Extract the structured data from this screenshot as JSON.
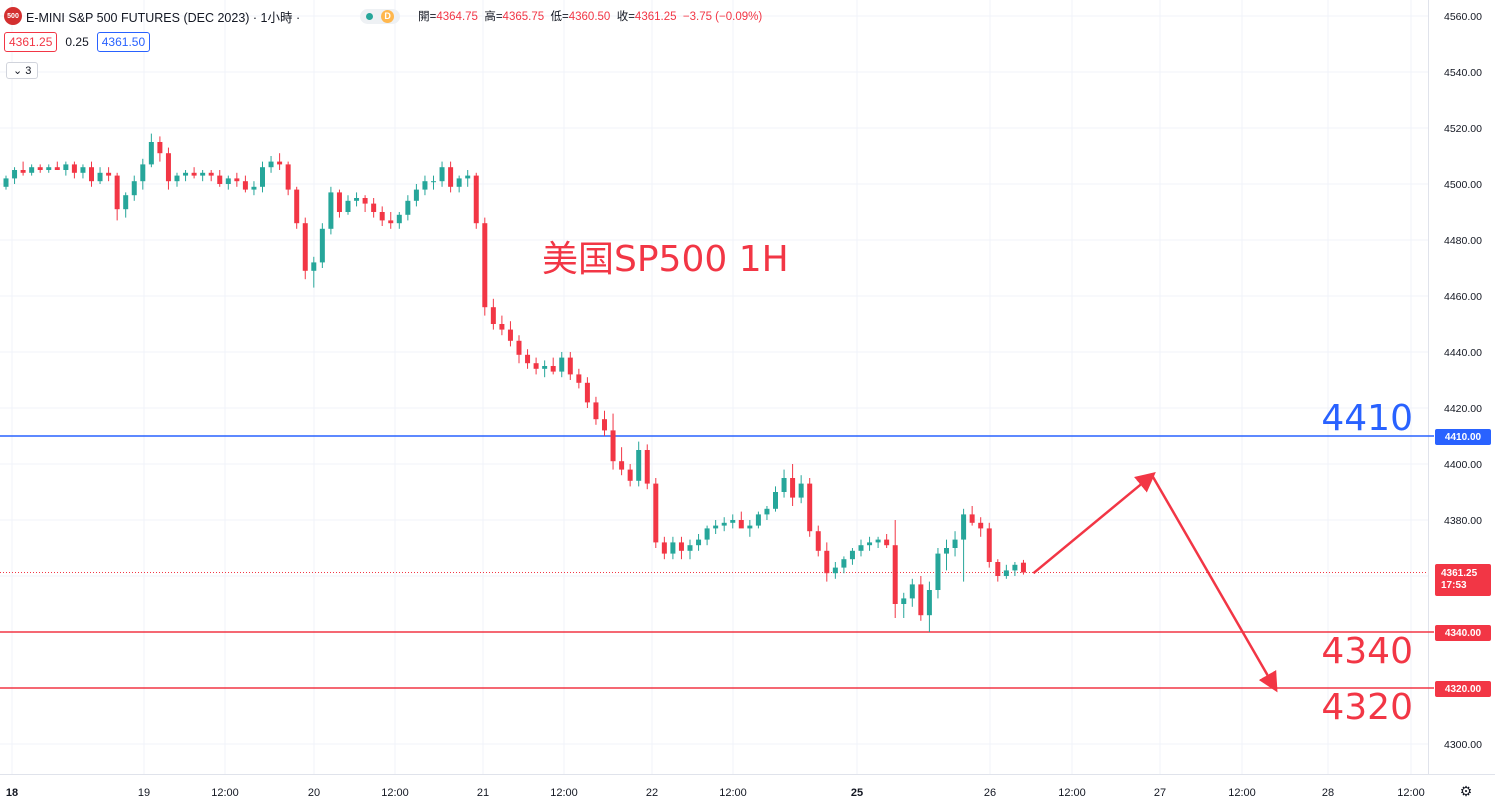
{
  "header": {
    "symbol_badge": "500",
    "title": "E-MINI S&P 500 FUTURES (DEC 2023) · 1小時 ·",
    "status_letter": "D",
    "ohlc": {
      "open_label": "開=",
      "open": "4364.75",
      "high_label": "高=",
      "high": "4365.75",
      "low_label": "低=",
      "low": "4360.50",
      "close_label": "收=",
      "close": "4361.25",
      "change": "−3.75 (−0.09%)"
    }
  },
  "quote": {
    "bid": "4361.25",
    "spread": "0.25",
    "ask": "4361.50"
  },
  "indicators_collapsed": "3",
  "annotations": {
    "text": "美国SP500 1H",
    "level_4410": "4410",
    "level_4340": "4340",
    "level_4320": "4320"
  },
  "price_tags": {
    "line_4410": "4410.00",
    "line_4340": "4340.00",
    "line_4320": "4320.00",
    "last_price": "4361.25",
    "countdown": "17:53"
  },
  "colors": {
    "up": "#26a69a",
    "down": "#f23645",
    "blue": "#2962ff",
    "red": "#f23645"
  },
  "chart_data": {
    "type": "candlestick",
    "interval": "1 hour",
    "ylim": [
      4300,
      4560
    ],
    "y_ticks": [
      "4560.00",
      "4540.00",
      "4520.00",
      "4500.00",
      "4480.00",
      "4460.00",
      "4440.00",
      "4420.00",
      "4400.00",
      "4380.00",
      "4360.00",
      "4340.00",
      "4320.00",
      "4300.00"
    ],
    "y_tick_values": [
      4560,
      4540,
      4520,
      4500,
      4480,
      4460,
      4440,
      4420,
      4400,
      4380,
      4360,
      4340,
      4320,
      4300
    ],
    "x_ticks": [
      "18",
      "19",
      "12:00",
      "20",
      "12:00",
      "21",
      "12:00",
      "22",
      "12:00",
      "25",
      "26",
      "12:00",
      "27",
      "12:00",
      "28",
      "12:00"
    ],
    "x_tick_bold": [
      true,
      false,
      false,
      false,
      false,
      false,
      false,
      false,
      false,
      true,
      false,
      false,
      false,
      false,
      false,
      false
    ],
    "horizontal_lines": [
      {
        "value": 4410,
        "color": "#2962ff"
      },
      {
        "value": 4340,
        "color": "#f23645"
      },
      {
        "value": 4320,
        "color": "#f23645"
      }
    ],
    "last_price": 4361.25,
    "projection_arrows": [
      {
        "from": 4361,
        "to": 4396
      },
      {
        "from": 4396,
        "to": 4320
      }
    ],
    "candles": [
      [
        4499,
        4503,
        4498,
        4502
      ],
      [
        4502,
        4506,
        4500,
        4505
      ],
      [
        4505,
        4508,
        4503,
        4504
      ],
      [
        4504,
        4507,
        4503,
        4506
      ],
      [
        4506,
        4507,
        4504,
        4505
      ],
      [
        4505,
        4507,
        4504,
        4506
      ],
      [
        4506,
        4508,
        4505,
        4505
      ],
      [
        4505,
        4508,
        4503,
        4507
      ],
      [
        4507,
        4508,
        4502,
        4504
      ],
      [
        4504,
        4507,
        4502,
        4506
      ],
      [
        4506,
        4508,
        4499,
        4501
      ],
      [
        4501,
        4506,
        4500,
        4504
      ],
      [
        4504,
        4506,
        4501,
        4503
      ],
      [
        4503,
        4504,
        4487,
        4491
      ],
      [
        4491,
        4497,
        4488,
        4496
      ],
      [
        4496,
        4503,
        4494,
        4501
      ],
      [
        4501,
        4509,
        4498,
        4507
      ],
      [
        4507,
        4518,
        4506,
        4515
      ],
      [
        4515,
        4517,
        4508,
        4511
      ],
      [
        4511,
        4513,
        4498,
        4501
      ],
      [
        4501,
        4504,
        4499,
        4503
      ],
      [
        4503,
        4505,
        4501,
        4504
      ],
      [
        4504,
        4506,
        4502,
        4503
      ],
      [
        4503,
        4505,
        4501,
        4504
      ],
      [
        4504,
        4505,
        4501,
        4503
      ],
      [
        4503,
        4505,
        4499,
        4500
      ],
      [
        4500,
        4503,
        4498,
        4502
      ],
      [
        4502,
        4504,
        4499,
        4501
      ],
      [
        4501,
        4503,
        4497,
        4498
      ],
      [
        4498,
        4501,
        4496,
        4499
      ],
      [
        4499,
        4508,
        4497,
        4506
      ],
      [
        4506,
        4510,
        4504,
        4508
      ],
      [
        4508,
        4511,
        4505,
        4507
      ],
      [
        4507,
        4508,
        4496,
        4498
      ],
      [
        4498,
        4499,
        4484,
        4486
      ],
      [
        4486,
        4488,
        4466,
        4469
      ],
      [
        4469,
        4474,
        4463,
        4472
      ],
      [
        4472,
        4486,
        4470,
        4484
      ],
      [
        4484,
        4499,
        4482,
        4497
      ],
      [
        4497,
        4498,
        4488,
        4490
      ],
      [
        4490,
        4496,
        4489,
        4494
      ],
      [
        4494,
        4497,
        4492,
        4495
      ],
      [
        4495,
        4496,
        4490,
        4493
      ],
      [
        4493,
        4495,
        4488,
        4490
      ],
      [
        4490,
        4492,
        4485,
        4487
      ],
      [
        4487,
        4490,
        4484,
        4486
      ],
      [
        4486,
        4490,
        4484,
        4489
      ],
      [
        4489,
        4496,
        4487,
        4494
      ],
      [
        4494,
        4500,
        4492,
        4498
      ],
      [
        4498,
        4503,
        4496,
        4501
      ],
      [
        4501,
        4503,
        4498,
        4501
      ],
      [
        4501,
        4508,
        4499,
        4506
      ],
      [
        4506,
        4508,
        4497,
        4499
      ],
      [
        4499,
        4503,
        4497,
        4502
      ],
      [
        4502,
        4505,
        4499,
        4503
      ],
      [
        4503,
        4504,
        4484,
        4486
      ],
      [
        4486,
        4488,
        4453,
        4456
      ],
      [
        4456,
        4459,
        4448,
        4450
      ],
      [
        4450,
        4453,
        4446,
        4448
      ],
      [
        4448,
        4451,
        4442,
        4444
      ],
      [
        4444,
        4446,
        4436,
        4439
      ],
      [
        4439,
        4441,
        4434,
        4436
      ],
      [
        4436,
        4438,
        4432,
        4434
      ],
      [
        4434,
        4437,
        4431,
        4435
      ],
      [
        4435,
        4438,
        4432,
        4433
      ],
      [
        4433,
        4440,
        4431,
        4438
      ],
      [
        4438,
        4440,
        4430,
        4432
      ],
      [
        4432,
        4434,
        4427,
        4429
      ],
      [
        4429,
        4431,
        4420,
        4422
      ],
      [
        4422,
        4424,
        4414,
        4416
      ],
      [
        4416,
        4419,
        4410,
        4412
      ],
      [
        4412,
        4418,
        4398,
        4401
      ],
      [
        4401,
        4406,
        4396,
        4398
      ],
      [
        4398,
        4400,
        4392,
        4394
      ],
      [
        4394,
        4408,
        4392,
        4405
      ],
      [
        4405,
        4407,
        4391,
        4393
      ],
      [
        4393,
        4395,
        4370,
        4372
      ],
      [
        4372,
        4374,
        4366,
        4368
      ],
      [
        4368,
        4374,
        4366,
        4372
      ],
      [
        4372,
        4374,
        4366,
        4369
      ],
      [
        4369,
        4373,
        4366,
        4371
      ],
      [
        4371,
        4375,
        4369,
        4373
      ],
      [
        4373,
        4378,
        4371,
        4377
      ],
      [
        4377,
        4380,
        4375,
        4378
      ],
      [
        4378,
        4381,
        4376,
        4379
      ],
      [
        4379,
        4382,
        4377,
        4380
      ],
      [
        4380,
        4383,
        4378,
        4377
      ],
      [
        4377,
        4380,
        4374,
        4378
      ],
      [
        4378,
        4383,
        4377,
        4382
      ],
      [
        4382,
        4385,
        4380,
        4384
      ],
      [
        4384,
        4392,
        4383,
        4390
      ],
      [
        4390,
        4398,
        4388,
        4395
      ],
      [
        4395,
        4400,
        4385,
        4388
      ],
      [
        4388,
        4396,
        4386,
        4393
      ],
      [
        4393,
        4395,
        4374,
        4376
      ],
      [
        4376,
        4378,
        4367,
        4369
      ],
      [
        4369,
        4372,
        4358,
        4361
      ],
      [
        4361,
        4365,
        4359,
        4363
      ],
      [
        4363,
        4367,
        4361,
        4366
      ],
      [
        4366,
        4370,
        4364,
        4369
      ],
      [
        4369,
        4373,
        4367,
        4371
      ],
      [
        4371,
        4374,
        4369,
        4372
      ],
      [
        4372,
        4374,
        4370,
        4373
      ],
      [
        4373,
        4375,
        4370,
        4371
      ],
      [
        4371,
        4380,
        4345,
        4350
      ],
      [
        4350,
        4354,
        4345,
        4352
      ],
      [
        4352,
        4359,
        4349,
        4357
      ],
      [
        4357,
        4360,
        4344,
        4346
      ],
      [
        4346,
        4358,
        4340,
        4355
      ],
      [
        4355,
        4370,
        4352,
        4368
      ],
      [
        4368,
        4373,
        4362,
        4370
      ],
      [
        4370,
        4376,
        4367,
        4373
      ],
      [
        4373,
        4384,
        4358,
        4382
      ],
      [
        4382,
        4385,
        4378,
        4379
      ],
      [
        4379,
        4381,
        4374,
        4377
      ],
      [
        4377,
        4379,
        4363,
        4365
      ],
      [
        4365,
        4366,
        4358,
        4360
      ],
      [
        4360,
        4364,
        4359,
        4362
      ],
      [
        4362,
        4365,
        4360,
        4364
      ],
      [
        4364.75,
        4365.75,
        4360.5,
        4361.25
      ]
    ]
  }
}
